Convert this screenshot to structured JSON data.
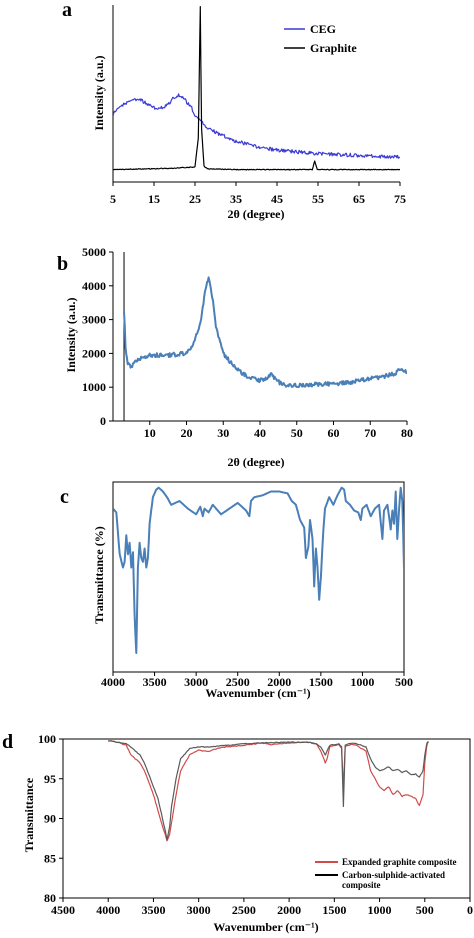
{
  "chart_data": [
    {
      "panel": "a",
      "type": "line",
      "xlabel": "2θ (degree)",
      "ylabel": "Intensity (a.u.)",
      "xlim": [
        5,
        75
      ],
      "ylim": [
        0,
        1
      ],
      "xticks": [
        5,
        15,
        25,
        35,
        45,
        55,
        65,
        75
      ],
      "legend": "top-right",
      "grid": false,
      "series": [
        {
          "name": "CEG",
          "color": "#3a3ad4",
          "noise": 0.01,
          "x": [
            5,
            7,
            9,
            10,
            12,
            14,
            16,
            18,
            20,
            21,
            22,
            23,
            24,
            25,
            26,
            28,
            30,
            35,
            40,
            45,
            50,
            55,
            60,
            65,
            70,
            75
          ],
          "y": [
            0.38,
            0.43,
            0.46,
            0.47,
            0.46,
            0.43,
            0.41,
            0.43,
            0.48,
            0.49,
            0.48,
            0.45,
            0.43,
            0.38,
            0.35,
            0.31,
            0.28,
            0.23,
            0.2,
            0.18,
            0.17,
            0.16,
            0.155,
            0.15,
            0.145,
            0.14
          ]
        },
        {
          "name": "Graphite",
          "color": "#000000",
          "noise": 0.002,
          "x": [
            5,
            15,
            20,
            25,
            25.8,
            26.3,
            26.6,
            27.2,
            28,
            35,
            45,
            53.6,
            54.2,
            54.8,
            60,
            75
          ],
          "y": [
            0.07,
            0.075,
            0.078,
            0.085,
            0.25,
            0.99,
            0.3,
            0.09,
            0.075,
            0.07,
            0.07,
            0.07,
            0.12,
            0.07,
            0.07,
            0.07
          ]
        }
      ]
    },
    {
      "panel": "b",
      "type": "line",
      "xlabel": "2θ (degree)",
      "ylabel": "Intensity (a.u.)",
      "xlim": [
        0,
        80
      ],
      "ylim": [
        0,
        5000
      ],
      "xticks": [
        10,
        20,
        30,
        40,
        50,
        60,
        70,
        80
      ],
      "yticks": [
        0,
        1000,
        2000,
        3000,
        4000,
        5000
      ],
      "grid": false,
      "series": [
        {
          "color": "#4a7fb8",
          "noise": 60,
          "x": [
            3,
            3.4,
            4,
            5,
            7,
            10,
            15,
            20,
            22,
            24,
            25,
            26,
            27,
            28,
            30,
            33,
            36,
            40,
            42,
            43,
            44,
            46,
            50,
            55,
            60,
            65,
            70,
            75,
            77,
            78,
            79,
            80
          ],
          "y": [
            3300,
            2200,
            1700,
            1600,
            1850,
            1950,
            1950,
            2000,
            2300,
            3000,
            3800,
            4250,
            3700,
            2800,
            2000,
            1600,
            1350,
            1200,
            1300,
            1380,
            1250,
            1080,
            1050,
            1080,
            1100,
            1150,
            1250,
            1350,
            1400,
            1560,
            1450,
            1450
          ]
        }
      ]
    },
    {
      "panel": "c",
      "type": "line",
      "xlabel": "Wavenumber (cm⁻¹)",
      "ylabel": "Transmittance (%)",
      "xlim": [
        4000,
        500
      ],
      "ylim": [
        0,
        100
      ],
      "xticks": [
        4000,
        3500,
        3000,
        2500,
        2000,
        1500,
        1000,
        500
      ],
      "grid": false,
      "series": [
        {
          "color": "#4a7fb8",
          "noise": 0,
          "x": [
            4000,
            3960,
            3920,
            3880,
            3860,
            3840,
            3820,
            3800,
            3780,
            3760,
            3740,
            3720,
            3700,
            3680,
            3660,
            3640,
            3620,
            3600,
            3580,
            3560,
            3520,
            3480,
            3450,
            3400,
            3350,
            3300,
            3200,
            3100,
            3000,
            2950,
            2920,
            2900,
            2850,
            2800,
            2700,
            2600,
            2500,
            2400,
            2360,
            2340,
            2300,
            2200,
            2100,
            2000,
            1900,
            1850,
            1800,
            1750,
            1700,
            1680,
            1650,
            1630,
            1600,
            1580,
            1560,
            1540,
            1520,
            1500,
            1470,
            1450,
            1400,
            1350,
            1300,
            1250,
            1220,
            1200,
            1150,
            1100,
            1050,
            1020,
            1000,
            950,
            900,
            850,
            800,
            760,
            740,
            700,
            680,
            660,
            640,
            620,
            600,
            580,
            560,
            540,
            520,
            500
          ],
          "y": [
            86,
            84,
            62,
            55,
            58,
            72,
            62,
            68,
            55,
            63,
            30,
            10,
            55,
            68,
            60,
            58,
            65,
            55,
            60,
            78,
            92,
            96,
            97,
            95,
            92,
            88,
            90,
            86,
            83,
            87,
            82,
            86,
            84,
            88,
            83,
            86,
            89,
            85,
            82,
            90,
            92,
            93,
            95,
            95,
            94,
            90,
            88,
            80,
            76,
            60,
            66,
            80,
            70,
            45,
            65,
            55,
            38,
            50,
            75,
            86,
            92,
            88,
            93,
            97,
            96,
            90,
            88,
            85,
            84,
            80,
            86,
            88,
            82,
            86,
            88,
            70,
            85,
            88,
            82,
            75,
            85,
            78,
            95,
            70,
            85,
            97,
            90,
            55
          ]
        }
      ]
    },
    {
      "panel": "d",
      "type": "line",
      "xlabel": "Wavenumber (cm⁻¹)",
      "ylabel": "Transmittance",
      "xlim": [
        4500,
        0
      ],
      "ylim": [
        80,
        100
      ],
      "xticks": [
        4500,
        4000,
        3500,
        3000,
        2500,
        2000,
        1500,
        1000,
        500,
        0
      ],
      "yticks": [
        80,
        85,
        90,
        95,
        100
      ],
      "legend": "bottom-right",
      "grid": false,
      "series": [
        {
          "name": "Expanded graphite composite",
          "color": "#d24b4b",
          "noise": 0.05,
          "x": [
            4000,
            3900,
            3800,
            3750,
            3700,
            3650,
            3600,
            3550,
            3500,
            3450,
            3400,
            3370,
            3350,
            3320,
            3300,
            3250,
            3200,
            3100,
            3000,
            2900,
            2800,
            2700,
            2500,
            2300,
            2200,
            2000,
            1800,
            1700,
            1650,
            1600,
            1580,
            1550,
            1500,
            1450,
            1420,
            1400,
            1380,
            1350,
            1300,
            1250,
            1200,
            1150,
            1100,
            1050,
            1000,
            950,
            900,
            850,
            800,
            750,
            700,
            650,
            600,
            560,
            520,
            500,
            480,
            470,
            460
          ],
          "y": [
            99.8,
            99.6,
            99.2,
            98.0,
            97.5,
            97.0,
            96.0,
            94.5,
            93.0,
            91.0,
            89.0,
            88.0,
            87.2,
            88.0,
            89.5,
            93.0,
            96.0,
            98.0,
            98.6,
            98.4,
            98.8,
            99.0,
            99.2,
            99.5,
            99.3,
            99.5,
            99.6,
            99.4,
            98.5,
            97.0,
            97.5,
            99.0,
            99.2,
            99.3,
            98.8,
            94.0,
            99.0,
            99.2,
            99.3,
            99.2,
            98.8,
            98.5,
            96.0,
            95.0,
            94.0,
            93.5,
            94.0,
            93.0,
            93.5,
            92.8,
            93.0,
            92.8,
            92.5,
            91.6,
            93.0,
            97.0,
            99.0,
            99.5,
            99.6
          ]
        },
        {
          "name": "Carbon-sulphide-activated composite",
          "color": "#5a5a5a",
          "noise": 0.04,
          "x": [
            4000,
            3900,
            3800,
            3750,
            3700,
            3650,
            3600,
            3550,
            3500,
            3450,
            3400,
            3370,
            3350,
            3320,
            3300,
            3250,
            3200,
            3100,
            3000,
            2900,
            2700,
            2500,
            2300,
            2000,
            1800,
            1700,
            1650,
            1600,
            1580,
            1550,
            1500,
            1450,
            1420,
            1400,
            1380,
            1350,
            1300,
            1250,
            1200,
            1150,
            1100,
            1050,
            1000,
            950,
            900,
            850,
            800,
            750,
            700,
            650,
            600,
            560,
            520,
            500,
            480,
            470,
            460
          ],
          "y": [
            99.8,
            99.6,
            99.4,
            99.0,
            98.5,
            98.0,
            97.0,
            95.5,
            94.0,
            92.5,
            90.0,
            88.5,
            87.3,
            89.0,
            91.5,
            95.0,
            97.5,
            98.8,
            99.0,
            99.0,
            99.2,
            99.4,
            99.5,
            99.6,
            99.6,
            99.4,
            99.0,
            98.0,
            98.5,
            99.2,
            99.3,
            99.4,
            99.0,
            91.5,
            99.2,
            99.4,
            99.5,
            99.4,
            99.2,
            99.0,
            97.5,
            96.5,
            96.0,
            96.2,
            96.5,
            96.0,
            96.2,
            95.8,
            96.0,
            95.5,
            95.6,
            95.2,
            96.0,
            98.0,
            99.3,
            99.6,
            99.7
          ]
        }
      ]
    }
  ],
  "panel_labels": [
    "a",
    "b",
    "c",
    "d"
  ]
}
